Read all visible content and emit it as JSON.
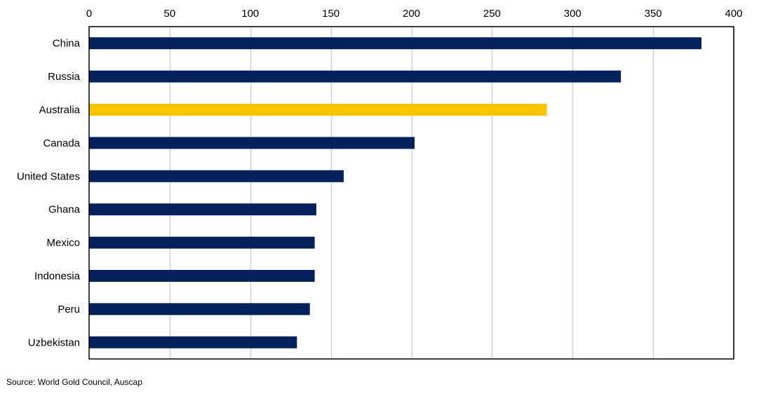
{
  "chart_data": {
    "type": "bar",
    "orientation": "horizontal",
    "categories": [
      "China",
      "Russia",
      "Australia",
      "Canada",
      "United States",
      "Ghana",
      "Mexico",
      "Indonesia",
      "Peru",
      "Uzbekistan"
    ],
    "values": [
      380,
      330,
      284,
      202,
      158,
      141,
      140,
      140,
      137,
      129
    ],
    "highlight_category": "Australia",
    "x_ticks": [
      0,
      50,
      100,
      150,
      200,
      250,
      300,
      350,
      400
    ],
    "xlim": [
      0,
      400
    ],
    "x_axis_position": "top",
    "grid": "vertical",
    "colors": {
      "bar": "#04215c",
      "highlight": "#fbc400",
      "grid": "#d0d0d0",
      "frame": "#000000"
    },
    "source": "Source: World Gold Council, Auscap"
  }
}
